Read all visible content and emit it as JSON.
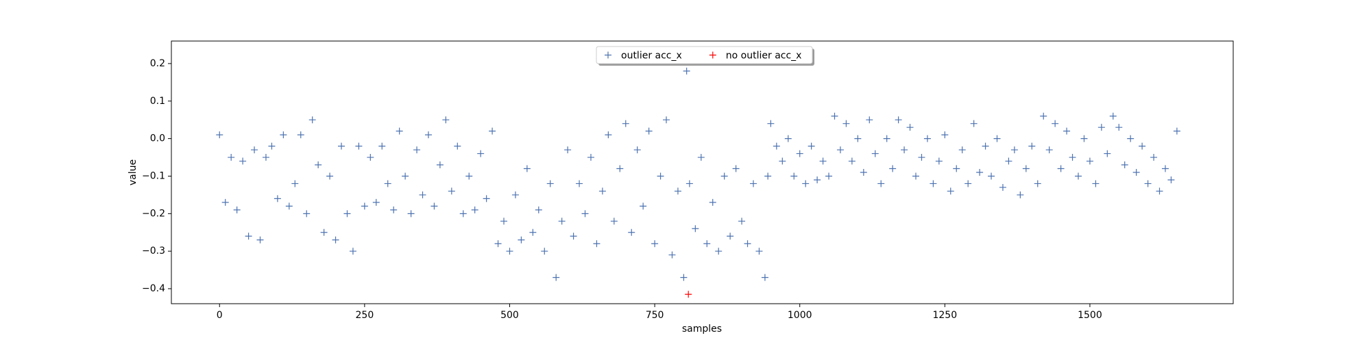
{
  "chart_data": {
    "type": "scatter",
    "xlabel": "samples",
    "ylabel": "value",
    "xlim": [
      -83,
      1747
    ],
    "ylim": [
      -0.44,
      0.26
    ],
    "xticks": [
      0,
      250,
      500,
      750,
      1000,
      1250,
      1500
    ],
    "yticks": [
      {
        "value": -0.4,
        "label": "−0.4"
      },
      {
        "value": -0.3,
        "label": "−0.3"
      },
      {
        "value": -0.2,
        "label": "−0.2"
      },
      {
        "value": -0.1,
        "label": "−0.1"
      },
      {
        "value": 0,
        "label": "0.0"
      },
      0.1,
      0.2
    ],
    "legend": "upper center",
    "marker": "+",
    "series": [
      {
        "name": "outlier acc_x",
        "color": "#4c72b0",
        "x": [
          0,
          10,
          20,
          30,
          40,
          50,
          60,
          70,
          80,
          90,
          100,
          110,
          120,
          130,
          140,
          150,
          160,
          170,
          180,
          190,
          200,
          210,
          220,
          230,
          240,
          250,
          260,
          270,
          280,
          290,
          300,
          310,
          320,
          330,
          340,
          350,
          360,
          370,
          380,
          390,
          400,
          410,
          420,
          430,
          440,
          450,
          460,
          470,
          480,
          490,
          500,
          510,
          520,
          530,
          540,
          550,
          560,
          570,
          580,
          590,
          600,
          610,
          620,
          630,
          640,
          650,
          660,
          670,
          680,
          690,
          700,
          710,
          720,
          730,
          740,
          750,
          760,
          770,
          780,
          790,
          800,
          805,
          810,
          820,
          830,
          840,
          850,
          860,
          870,
          880,
          890,
          900,
          910,
          920,
          930,
          940,
          945,
          950,
          960,
          970,
          980,
          990,
          1000,
          1010,
          1020,
          1030,
          1040,
          1050,
          1060,
          1070,
          1080,
          1090,
          1100,
          1110,
          1120,
          1130,
          1140,
          1150,
          1160,
          1170,
          1180,
          1190,
          1200,
          1210,
          1220,
          1230,
          1240,
          1250,
          1260,
          1270,
          1280,
          1290,
          1300,
          1310,
          1320,
          1330,
          1340,
          1350,
          1360,
          1370,
          1380,
          1390,
          1400,
          1410,
          1420,
          1430,
          1440,
          1450,
          1460,
          1470,
          1480,
          1490,
          1500,
          1510,
          1520,
          1530,
          1540,
          1550,
          1560,
          1570,
          1580,
          1590,
          1600,
          1610,
          1620,
          1630,
          1640,
          1650
        ],
        "values": [
          0.01,
          -0.17,
          -0.05,
          -0.19,
          -0.06,
          -0.26,
          -0.03,
          -0.27,
          -0.05,
          -0.02,
          -0.16,
          0.01,
          -0.18,
          -0.12,
          0.01,
          -0.2,
          0.05,
          -0.07,
          -0.25,
          -0.1,
          -0.27,
          -0.02,
          -0.2,
          -0.3,
          -0.02,
          -0.18,
          -0.05,
          -0.17,
          -0.02,
          -0.12,
          -0.19,
          0.02,
          -0.1,
          -0.2,
          -0.03,
          -0.15,
          0.01,
          -0.18,
          -0.07,
          0.05,
          -0.14,
          -0.02,
          -0.2,
          -0.1,
          -0.19,
          -0.04,
          -0.16,
          0.02,
          -0.28,
          -0.22,
          -0.3,
          -0.15,
          -0.27,
          -0.08,
          -0.25,
          -0.19,
          -0.3,
          -0.12,
          -0.37,
          -0.22,
          -0.03,
          -0.26,
          -0.12,
          -0.2,
          -0.05,
          -0.28,
          -0.14,
          0.01,
          -0.22,
          -0.08,
          0.04,
          -0.25,
          -0.03,
          -0.18,
          0.02,
          -0.28,
          -0.1,
          0.05,
          -0.31,
          -0.14,
          -0.37,
          0.18,
          -0.12,
          -0.24,
          -0.05,
          -0.28,
          -0.17,
          -0.3,
          -0.1,
          -0.26,
          -0.08,
          -0.22,
          -0.28,
          -0.12,
          -0.3,
          -0.37,
          -0.1,
          0.04,
          -0.02,
          -0.06,
          0.0,
          -0.1,
          -0.04,
          -0.12,
          -0.02,
          -0.11,
          -0.06,
          -0.1,
          0.06,
          -0.03,
          0.04,
          -0.06,
          0.0,
          -0.09,
          0.05,
          -0.04,
          -0.12,
          0.0,
          -0.08,
          0.05,
          -0.03,
          0.03,
          -0.1,
          -0.05,
          0.0,
          -0.12,
          -0.06,
          0.01,
          -0.14,
          -0.08,
          -0.03,
          -0.12,
          0.04,
          -0.09,
          -0.02,
          -0.1,
          0.0,
          -0.13,
          -0.06,
          -0.03,
          -0.15,
          -0.08,
          -0.02,
          -0.12,
          0.06,
          -0.03,
          0.04,
          -0.08,
          0.02,
          -0.05,
          -0.1,
          0.0,
          -0.06,
          -0.12,
          0.03,
          -0.04,
          0.06,
          0.03,
          -0.07,
          0.0,
          -0.09,
          -0.02,
          -0.12,
          -0.05,
          -0.14,
          -0.08,
          -0.11,
          0.02
        ]
      },
      {
        "name": "no outlier acc_x",
        "color": "#ff0000",
        "x": [
          808
        ],
        "values": [
          -0.415
        ]
      }
    ]
  }
}
